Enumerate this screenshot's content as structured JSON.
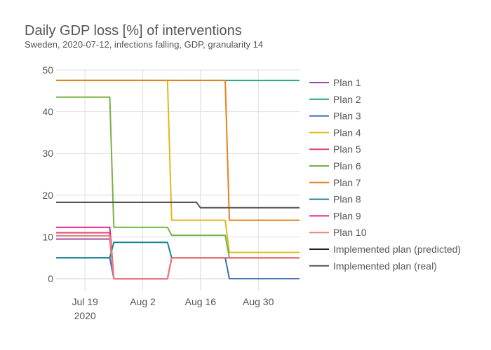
{
  "chart_data": {
    "type": "line",
    "title": "Daily GDP loss [%] of interventions",
    "subtitle": "Sweden, 2020-07-12, infections falling, GDP, granularity 14",
    "xlabel": "",
    "ylabel": "",
    "x_range": [
      "2020-07-12",
      "2020-09-09"
    ],
    "ylim": [
      -3,
      50
    ],
    "y_ticks": [
      0,
      10,
      20,
      30,
      40,
      50
    ],
    "x_ticks": [
      {
        "date": "2020-07-19",
        "label": "Jul 19",
        "sublabel": "2020"
      },
      {
        "date": "2020-08-02",
        "label": "Aug 2",
        "sublabel": ""
      },
      {
        "date": "2020-08-16",
        "label": "Aug 16",
        "sublabel": ""
      },
      {
        "date": "2020-08-30",
        "label": "Aug 30",
        "sublabel": ""
      }
    ],
    "grid": true,
    "legend_position": "right",
    "series": [
      {
        "name": "Plan 1",
        "color": "#9b4ca0",
        "points": [
          [
            "2020-07-12",
            9.5
          ],
          [
            "2020-07-25",
            9.5
          ],
          [
            "2020-07-26",
            0
          ],
          [
            "2020-08-08",
            0
          ],
          [
            "2020-08-09",
            5
          ],
          [
            "2020-09-09",
            5
          ]
        ]
      },
      {
        "name": "Plan 2",
        "color": "#1fa385",
        "points": [
          [
            "2020-07-12",
            47.5
          ],
          [
            "2020-09-09",
            47.5
          ]
        ]
      },
      {
        "name": "Plan 3",
        "color": "#3b6db5",
        "points": [
          [
            "2020-07-12",
            5
          ],
          [
            "2020-07-25",
            5
          ],
          [
            "2020-07-26",
            0
          ],
          [
            "2020-08-08",
            0
          ],
          [
            "2020-08-09",
            5
          ],
          [
            "2020-08-22",
            5
          ],
          [
            "2020-08-23",
            0
          ],
          [
            "2020-09-09",
            0
          ]
        ]
      },
      {
        "name": "Plan 4",
        "color": "#e0b81a",
        "points": [
          [
            "2020-07-12",
            47.5
          ],
          [
            "2020-08-08",
            47.5
          ],
          [
            "2020-08-09",
            14
          ],
          [
            "2020-08-22",
            14
          ],
          [
            "2020-08-23",
            6.3
          ],
          [
            "2020-09-09",
            6.3
          ]
        ]
      },
      {
        "name": "Plan 5",
        "color": "#d6457a",
        "points": [
          [
            "2020-07-12",
            11
          ],
          [
            "2020-07-25",
            11
          ],
          [
            "2020-07-26",
            0
          ],
          [
            "2020-08-08",
            0
          ],
          [
            "2020-08-09",
            5
          ],
          [
            "2020-09-09",
            5
          ]
        ]
      },
      {
        "name": "Plan 6",
        "color": "#74b347",
        "points": [
          [
            "2020-07-12",
            43.5
          ],
          [
            "2020-07-25",
            43.5
          ],
          [
            "2020-07-26",
            12.3
          ],
          [
            "2020-08-08",
            12.3
          ],
          [
            "2020-08-09",
            10.4
          ],
          [
            "2020-08-22",
            10.4
          ],
          [
            "2020-08-23",
            5
          ],
          [
            "2020-09-09",
            5
          ]
        ]
      },
      {
        "name": "Plan 7",
        "color": "#ea7f1d",
        "points": [
          [
            "2020-07-12",
            47.5
          ],
          [
            "2020-08-22",
            47.5
          ],
          [
            "2020-08-23",
            14
          ],
          [
            "2020-09-09",
            14
          ]
        ]
      },
      {
        "name": "Plan 8",
        "color": "#16848f",
        "points": [
          [
            "2020-07-12",
            5
          ],
          [
            "2020-07-25",
            5
          ],
          [
            "2020-07-26",
            8.7
          ],
          [
            "2020-08-08",
            8.7
          ],
          [
            "2020-08-09",
            5
          ],
          [
            "2020-09-09",
            5
          ]
        ]
      },
      {
        "name": "Plan 9",
        "color": "#e0258f",
        "points": [
          [
            "2020-07-12",
            12.3
          ],
          [
            "2020-07-25",
            12.3
          ],
          [
            "2020-07-26",
            0
          ],
          [
            "2020-08-08",
            0
          ],
          [
            "2020-08-09",
            5
          ],
          [
            "2020-09-09",
            5
          ]
        ]
      },
      {
        "name": "Plan 10",
        "color": "#f07f73",
        "points": [
          [
            "2020-07-12",
            10.3
          ],
          [
            "2020-07-25",
            10.3
          ],
          [
            "2020-07-26",
            0
          ],
          [
            "2020-08-08",
            0
          ],
          [
            "2020-08-09",
            5
          ],
          [
            "2020-09-09",
            5
          ]
        ]
      },
      {
        "name": "Implemented plan (predicted)",
        "color": "#222222",
        "points": []
      },
      {
        "name": "Implemented plan (real)",
        "color": "#555555",
        "points": [
          [
            "2020-07-12",
            18.3
          ],
          [
            "2020-08-15",
            18.3
          ],
          [
            "2020-08-16",
            17
          ],
          [
            "2020-09-09",
            17
          ]
        ]
      }
    ]
  }
}
